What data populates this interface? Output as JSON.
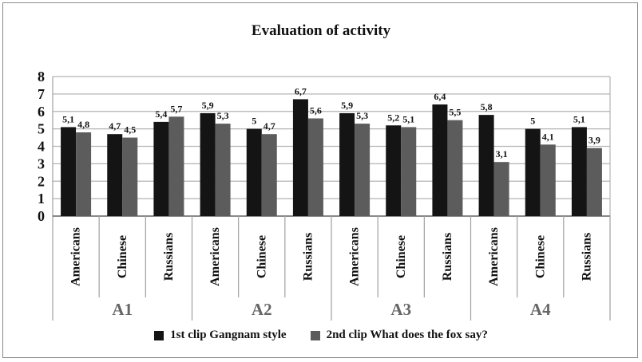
{
  "chart_data": {
    "type": "bar",
    "title": "Evaluation of activity",
    "ylim": [
      0,
      8
    ],
    "yticks": [
      "0",
      "1",
      "2",
      "3",
      "4",
      "5",
      "6",
      "7",
      "8"
    ],
    "grid": true,
    "legend_position": "bottom",
    "groups": [
      "A1",
      "A2",
      "A3",
      "A4"
    ],
    "categories": [
      "Americans",
      "Chinese",
      "Russians",
      "Americans",
      "Chinese",
      "Russians",
      "Americans",
      "Chinese",
      "Russians",
      "Americans",
      "Chinese",
      "Russians"
    ],
    "series": [
      {
        "name": "1st clip Gangnam style",
        "color": "#141414",
        "values": [
          5.1,
          4.7,
          5.4,
          5.9,
          5.0,
          6.7,
          5.9,
          5.2,
          6.4,
          5.8,
          5.0,
          5.1
        ],
        "labels": [
          "5,1",
          "4,7",
          "5,4",
          "5,9",
          "5",
          "6,7",
          "5,9",
          "5,2",
          "6,4",
          "5,8",
          "5",
          "5,1"
        ]
      },
      {
        "name": "2nd clip What does the fox say?",
        "color": "#5c5c5c",
        "values": [
          4.8,
          4.5,
          5.7,
          5.3,
          4.7,
          5.6,
          5.3,
          5.1,
          5.5,
          3.1,
          4.1,
          3.9
        ],
        "labels": [
          "4,8",
          "4,5",
          "5,7",
          "5,3",
          "4,7",
          "5,6",
          "5,3",
          "5,1",
          "5,5",
          "3,1",
          "4,1",
          "3,9"
        ]
      }
    ]
  }
}
